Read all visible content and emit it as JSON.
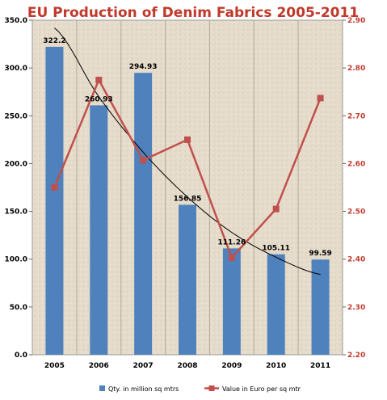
{
  "chart_data": {
    "type": "bar",
    "title": "EU Production of Denim Fabrics 2005-2011",
    "categories": [
      "2005",
      "2006",
      "2007",
      "2008",
      "2009",
      "2010",
      "2011"
    ],
    "series": [
      {
        "name": "Qty. in million sq mtrs",
        "type": "bar",
        "axis": "left",
        "color": "#4f81bd",
        "values": [
          322.2,
          260.93,
          294.93,
          156.85,
          111.26,
          105.11,
          99.59
        ],
        "labels": [
          "322.2",
          "260.93",
          "294.93",
          "156.85",
          "111.26",
          "105.11",
          "99.59"
        ]
      },
      {
        "name": "Value in Euro per sq mtr",
        "type": "line",
        "axis": "right",
        "color": "#c0504d",
        "values": [
          2.55,
          2.775,
          2.607,
          2.65,
          2.403,
          2.505,
          2.737
        ]
      }
    ],
    "trendline": {
      "of_series": "Qty. in million sq mtrs",
      "kind": "polynomial",
      "color": "#000000",
      "values": [
        342,
        270,
        212,
        165,
        128,
        102,
        84
      ]
    },
    "y_left": {
      "range": [
        0,
        350
      ],
      "ticks": [
        "0.0",
        "50.0",
        "100.0",
        "150.0",
        "200.0",
        "250.0",
        "300.0",
        "350.0"
      ]
    },
    "y_right": {
      "range": [
        2.2,
        2.9
      ],
      "ticks": [
        "2.20",
        "2.30",
        "2.40",
        "2.50",
        "2.60",
        "2.70",
        "2.80",
        "2.90"
      ]
    },
    "grid": "vertical",
    "legend_position": "bottom",
    "background": "#e8dfd0",
    "title_color": "#c0392b",
    "right_axis_color": "#c0392b"
  }
}
